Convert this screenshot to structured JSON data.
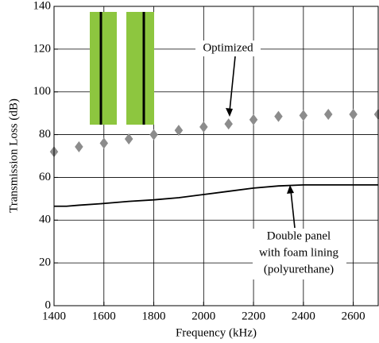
{
  "chart_data": {
    "type": "line",
    "x_label": "Frequency (kHz)",
    "y_label": "Transmission Loss (dB)",
    "xlim": [
      1400,
      2700
    ],
    "xticks": [
      1400,
      1600,
      1800,
      2000,
      2200,
      2400,
      2600
    ],
    "ylim": [
      0,
      140
    ],
    "yticks": [
      0,
      20,
      40,
      60,
      80,
      100,
      120,
      140
    ],
    "grid": true,
    "series": [
      {
        "name": "Optimized",
        "mode": "markers",
        "color": "#8c8c8c",
        "x": [
          1400,
          1500,
          1600,
          1700,
          1800,
          1900,
          2000,
          2100,
          2200,
          2300,
          2400,
          2500,
          2600,
          2700
        ],
        "values": [
          72,
          74.3,
          76,
          78,
          80,
          82,
          83.6,
          85,
          87,
          88.5,
          89,
          89.5,
          89.5,
          89.5
        ]
      },
      {
        "name": "Double panel with foam lining (polyurethane)",
        "mode": "lines",
        "color": "#000000",
        "x": [
          1400,
          1450,
          1500,
          1600,
          1700,
          1800,
          1900,
          2000,
          2100,
          2200,
          2300,
          2400,
          2500,
          2600,
          2700
        ],
        "values": [
          46.5,
          46.5,
          47,
          47.8,
          48.8,
          49.5,
          50.5,
          52,
          53.5,
          55,
          56,
          56.5,
          56.5,
          56.5,
          56.5
        ]
      }
    ],
    "annotations": [
      {
        "lines": [
          "Optimized"
        ]
      },
      {
        "lines": [
          "Double panel",
          "with foam lining",
          "(polyurethane)"
        ]
      }
    ]
  }
}
